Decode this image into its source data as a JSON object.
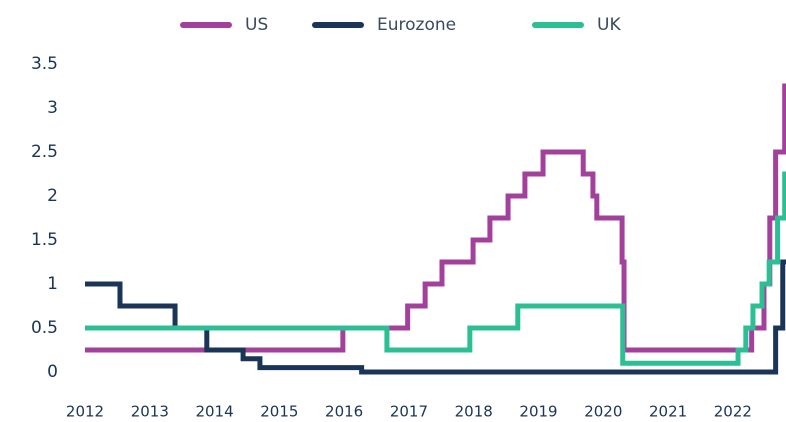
{
  "chart_data": {
    "type": "line",
    "step": "post",
    "xlim": [
      2012,
      2022.82
    ],
    "xticks": [
      2012,
      2013,
      2014,
      2015,
      2016,
      2017,
      2018,
      2019,
      2020,
      2021,
      2022
    ],
    "ylim": [
      0,
      3.5
    ],
    "yticks": [
      0,
      0.5,
      1,
      1.5,
      2,
      2.5,
      3,
      3.5
    ],
    "grid": false,
    "legend": "top",
    "series": [
      {
        "name": "US",
        "color": "#a3409c",
        "x": [
          2012,
          2015.98,
          2016.98,
          2017.25,
          2017.51,
          2017.99,
          2018.25,
          2018.53,
          2018.79,
          2019.07,
          2019.69,
          2019.84,
          2019.9,
          2020.29,
          2020.32,
          2022.29,
          2022.48,
          2022.57,
          2022.66,
          2022.8,
          2022.82
        ],
        "values": [
          0.25,
          0.5,
          0.75,
          1.0,
          1.25,
          1.5,
          1.75,
          2.0,
          2.25,
          2.5,
          2.25,
          2.0,
          1.75,
          1.25,
          0.25,
          0.5,
          1.0,
          1.75,
          2.5,
          3.25,
          3.25
        ]
      },
      {
        "name": "Eurozone",
        "color": "#1a3558",
        "x": [
          2012,
          2012.54,
          2013.39,
          2013.88,
          2014.44,
          2014.7,
          2016.27,
          2022.66,
          2022.77,
          2022.82
        ],
        "values": [
          1.0,
          0.75,
          0.5,
          0.25,
          0.15,
          0.05,
          0,
          0.5,
          1.25,
          1.25
        ]
      },
      {
        "name": "UK",
        "color": "#2dbf94",
        "x": [
          2012,
          2016.66,
          2017.94,
          2018.68,
          2020.3,
          2022.08,
          2022.2,
          2022.31,
          2022.45,
          2022.56,
          2022.69,
          2022.8,
          2022.82
        ],
        "values": [
          0.5,
          0.25,
          0.5,
          0.75,
          0.1,
          0.25,
          0.5,
          0.75,
          1.0,
          1.25,
          1.75,
          2.25,
          2.25
        ]
      }
    ]
  }
}
